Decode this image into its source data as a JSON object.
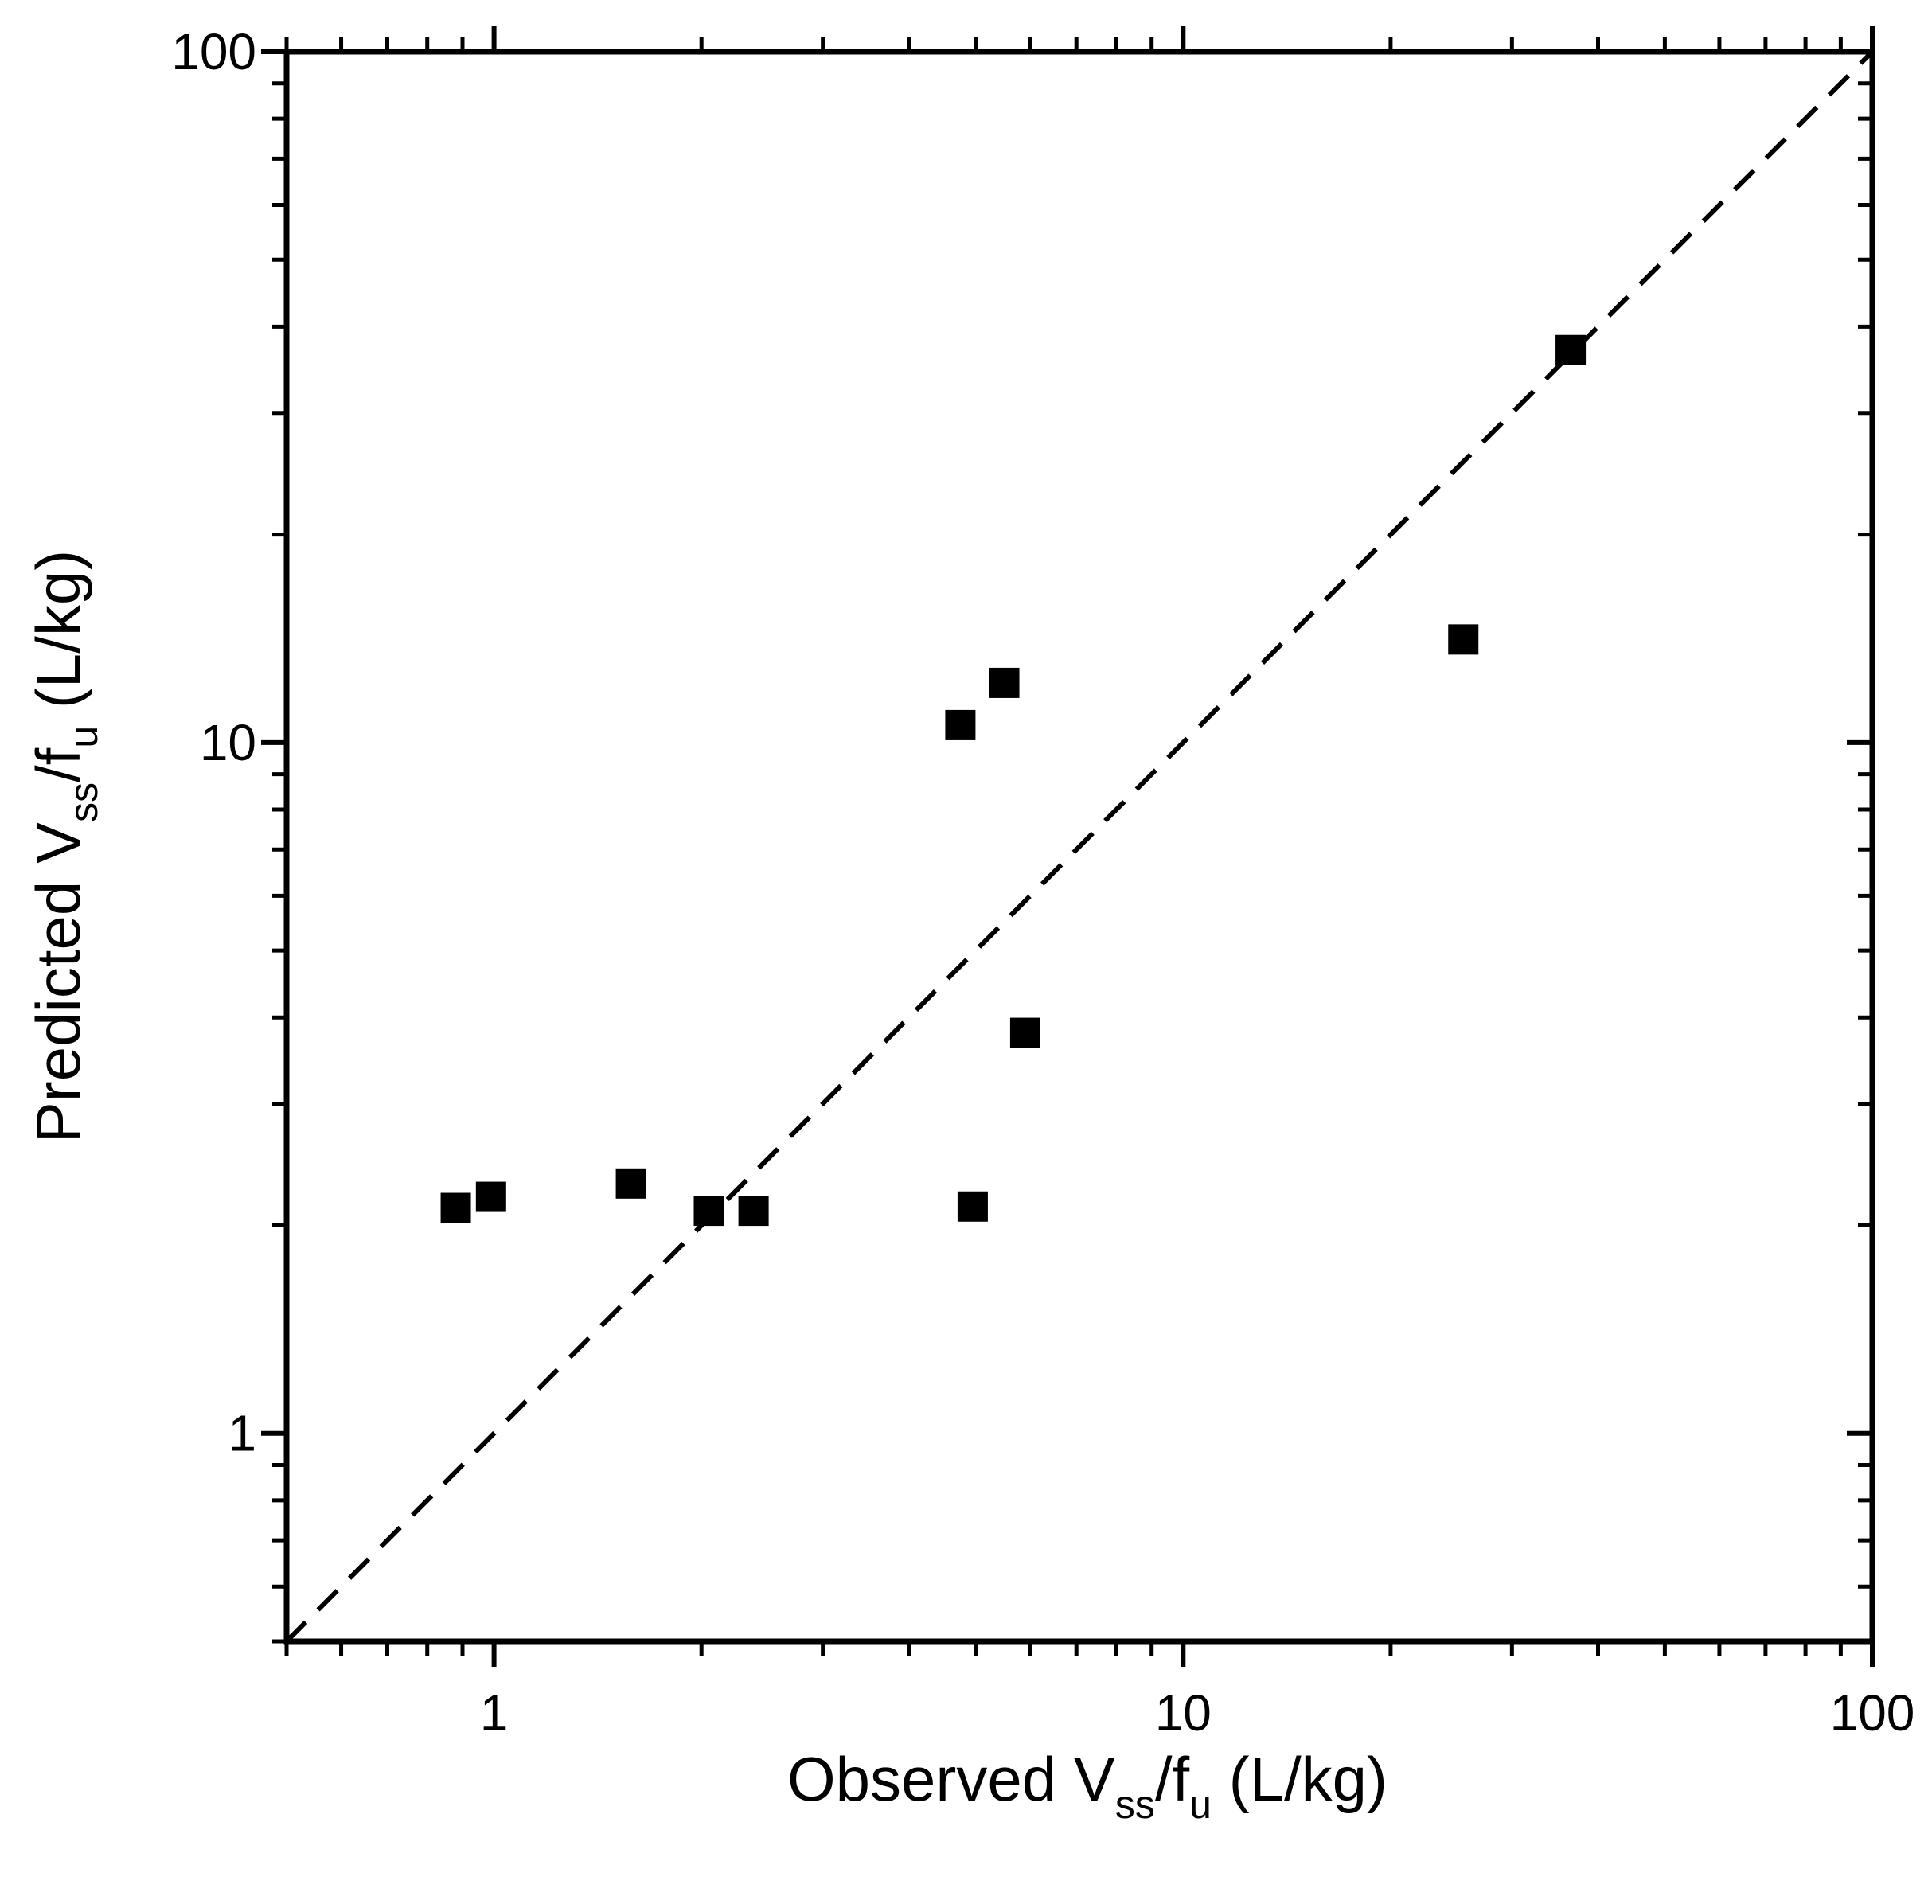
{
  "chart_data": {
    "type": "scatter",
    "x_scale": "log",
    "y_scale": "log",
    "xlim": [
      0.5,
      100
    ],
    "ylim": [
      0.5,
      100
    ],
    "x_ticks": [
      1,
      10,
      100
    ],
    "x_tick_labels": [
      "1",
      "10",
      "100"
    ],
    "y_ticks": [
      1,
      10,
      100
    ],
    "y_tick_labels": [
      "1",
      "10",
      "100"
    ],
    "xlabel": {
      "main": "Observed V",
      "sub1": "ss",
      "mid": "/f",
      "sub2": "u",
      "end": " (L/kg)"
    },
    "ylabel": {
      "main": "Predicted V",
      "sub1": "ss",
      "mid": "/f",
      "sub2": "u",
      "end": " (L/kg)"
    },
    "grid": false,
    "legend": "none",
    "marker": "filled-square",
    "marker_color": "#000000",
    "reference_line": {
      "style": "dashed",
      "from": [
        0.5,
        0.5
      ],
      "to": [
        100,
        100
      ],
      "meaning": "line of unity"
    },
    "points": [
      {
        "x": 0.88,
        "y": 2.12
      },
      {
        "x": 0.99,
        "y": 2.2
      },
      {
        "x": 1.58,
        "y": 2.3
      },
      {
        "x": 2.05,
        "y": 2.1
      },
      {
        "x": 2.38,
        "y": 2.1
      },
      {
        "x": 4.75,
        "y": 10.6
      },
      {
        "x": 4.95,
        "y": 2.13
      },
      {
        "x": 5.5,
        "y": 12.2
      },
      {
        "x": 5.9,
        "y": 3.8
      },
      {
        "x": 25.5,
        "y": 14.1
      },
      {
        "x": 36.5,
        "y": 37.0
      }
    ]
  }
}
